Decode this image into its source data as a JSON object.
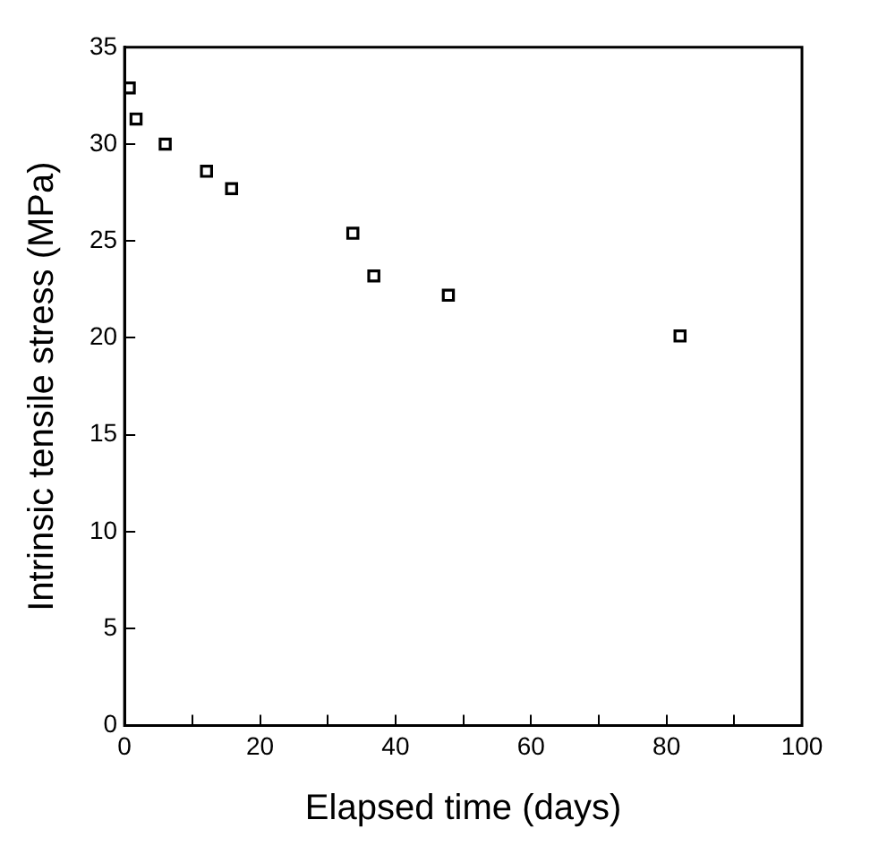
{
  "chart_data": {
    "type": "scatter",
    "xlabel": "Elapsed time (days)",
    "ylabel": "Intrinsic tensile stress (MPa)",
    "x": [
      0.7,
      1.7,
      6.0,
      12.1,
      15.8,
      33.7,
      36.8,
      47.8,
      82.0
    ],
    "values": [
      32.9,
      31.3,
      30.0,
      28.6,
      27.7,
      25.4,
      23.2,
      22.2,
      20.1
    ],
    "color": "#000000",
    "marker": "square",
    "xlim": [
      0,
      100
    ],
    "xticks": [
      0,
      {
        "value": 10,
        "label": null
      },
      20,
      {
        "value": 30,
        "label": null
      },
      40,
      {
        "value": 50,
        "label": null
      },
      60,
      {
        "value": 70,
        "label": null
      },
      80,
      {
        "value": 90,
        "label": null
      },
      100
    ],
    "ylim": [
      0,
      35
    ],
    "yticks": [
      0,
      5,
      10,
      15,
      20,
      25,
      30,
      35
    ],
    "grid": false,
    "legend": false
  }
}
